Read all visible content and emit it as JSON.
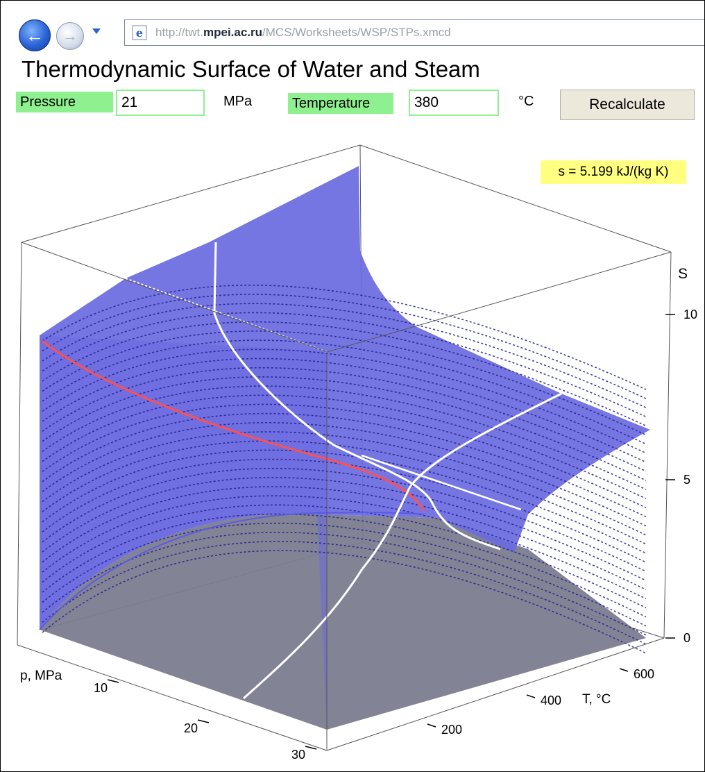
{
  "browser": {
    "address_prefix": "http://twt.",
    "address_host": "mpei.ac.ru",
    "address_path": "/MCS/Worksheets/WSP/STPs.xmcd",
    "icons": [
      "back-arrow-icon",
      "forward-arrow-icon",
      "chevron-down-icon",
      "ie-page-icon"
    ]
  },
  "page": {
    "title": "Thermodynamic Surface of Water and Steam"
  },
  "form": {
    "pressure_label": "Pressure",
    "pressure_value": "21",
    "pressure_unit": "MPa",
    "temperature_label": "Temperature",
    "temperature_value": "380",
    "temperature_unit": "°C",
    "recalculate_label": "Recalculate"
  },
  "result": {
    "text": "s = 5.199 kJ/(kg K)"
  },
  "plot": {
    "s_axis_label": "S",
    "s_ticks": [
      "0",
      "5",
      "10"
    ],
    "p_axis_label": "p, MPa",
    "p_ticks": [
      "10",
      "20",
      "30"
    ],
    "t_axis_label": "T, °C",
    "t_ticks": [
      "200",
      "400",
      "600"
    ],
    "colors": {
      "surface": "#6a6ae0",
      "surface_dark": "#7c7c90",
      "contour": "#1e1e8c",
      "highlight": "#ffffff",
      "saturation_curve": "#ff5050",
      "label_green": "#8ef08e",
      "result_yellow": "#ffff80"
    }
  }
}
